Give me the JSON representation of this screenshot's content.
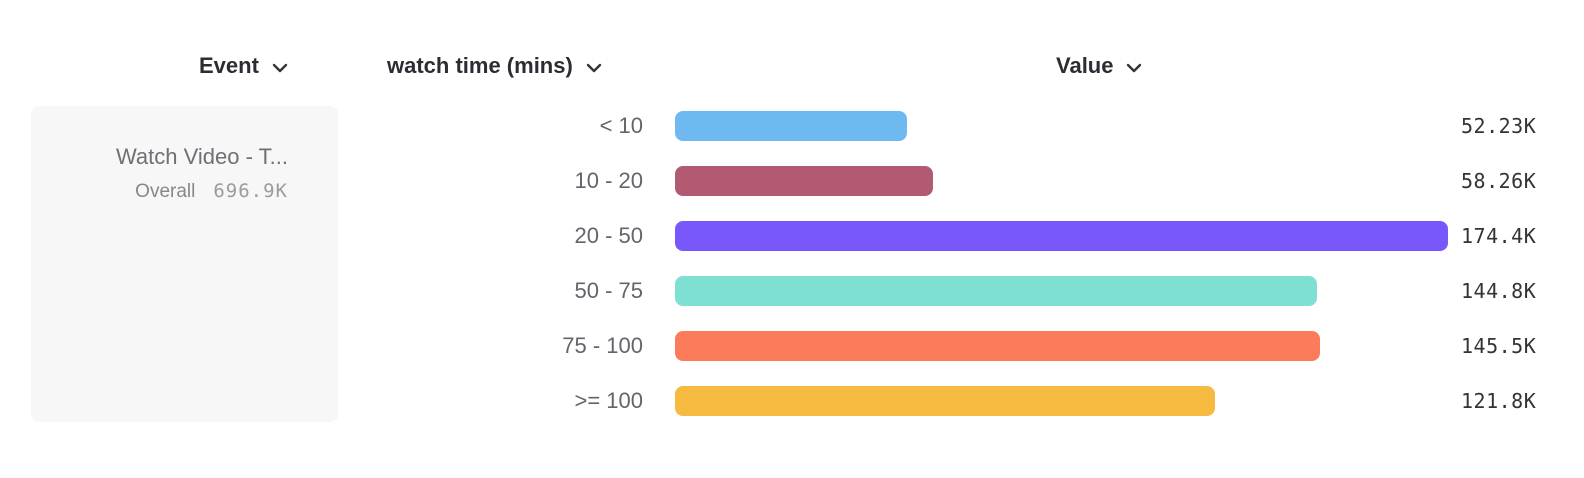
{
  "header": {
    "event_label": "Event",
    "series_label": "watch time (mins)",
    "value_label": "Value"
  },
  "event_card": {
    "title": "Watch Video - T...",
    "overall_label": "Overall",
    "overall_value": "696.9K"
  },
  "chart_data": {
    "type": "bar",
    "orientation": "horizontal",
    "title": "",
    "xlabel": "Value",
    "ylabel": "watch time (mins)",
    "xlim": [
      0,
      174400
    ],
    "grid": false,
    "categories": [
      "< 10",
      "10 - 20",
      "20 - 50",
      "50 - 75",
      "75 - 100",
      ">= 100"
    ],
    "values": [
      52230,
      58260,
      174400,
      144800,
      145500,
      121800
    ],
    "value_labels": [
      "52.23K",
      "58.26K",
      "174.4K",
      "144.8K",
      "145.5K",
      "121.8K"
    ],
    "bar_colors": [
      "#6fb9f1",
      "#b25a71",
      "#7857fb",
      "#7ee0d2",
      "#fc7b5b",
      "#f6ba40"
    ],
    "colors": {
      "header_text": "#2c2d33",
      "category_text": "#64646c",
      "value_text": "#333338",
      "card_background": "#f7f7f7"
    }
  }
}
